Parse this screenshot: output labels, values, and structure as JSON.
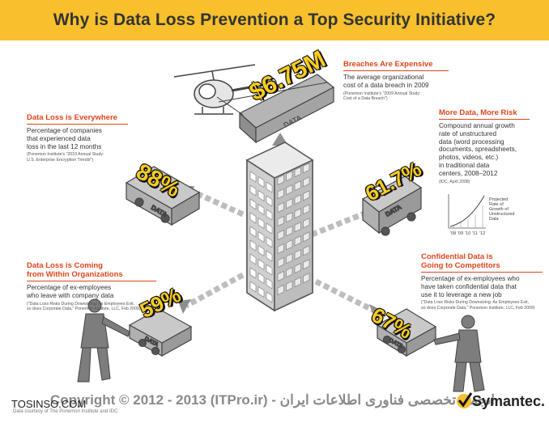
{
  "title": "Why is Data Loss Prevention a Top Security Initiative?",
  "callouts": {
    "breaches": {
      "title": "Breaches Are Expensive",
      "desc": [
        "The average organizational",
        "cost of a data breach in 2009"
      ],
      "source": [
        "(Ponemon Institute's \"2009 Annual Study:",
        "Cost of a Data Breach\")"
      ]
    },
    "everywhere": {
      "title": "Data Loss is Everywhere",
      "desc": [
        "Percentage of companies",
        "that experienced data",
        "loss in the last 12 months"
      ],
      "source": [
        "(Ponemon Institute's \"2010 Annual Study:",
        "U.S. Enterprise Encryption Trends\")"
      ]
    },
    "more_data": {
      "title": "More Data, More Risk",
      "desc": [
        "Compound annual growth",
        "rate of unstructured",
        "data (word processing",
        "documents, spreadsheets,",
        "photos, videos, etc.)",
        "in traditional data",
        "centers, 2008–2012"
      ],
      "source": [
        "(IDC, April 2008)"
      ]
    },
    "within": {
      "title_lines": [
        "Data Loss is Coming",
        "from Within Organizations"
      ],
      "desc": [
        "Percentage of ex-employees",
        "who leave with company data"
      ],
      "source": [
        "(\"Data Loss Risks During Downsizing: As Employees Exit,",
        "so does Corporate Data,\" Ponemon Institute, LLC, Feb 2009)"
      ]
    },
    "competitors": {
      "title_lines": [
        "Confidential Data is",
        "Going to Competitors"
      ],
      "desc": [
        "Percentage of ex-employees who",
        "have taken confidential data that",
        "use it to leverage a new job"
      ],
      "source": [
        "(\"Data Loss Risks During Downsizing: As Employees Exit,",
        "so does Corporate Data,\" Ponemon Institute, LLC, Feb 2009)"
      ]
    }
  },
  "stats": {
    "breach_cost": "$6.75M",
    "everywhere_pct": "88%",
    "more_data_pct": "61.7%",
    "within_pct": "59%",
    "competitors_pct": "67%"
  },
  "data_label": "DATA",
  "mini_chart": {
    "years": [
      "'08",
      "'09",
      "'10",
      "'11",
      "'12"
    ],
    "label": [
      "Projected",
      "Rate of",
      "Growth of",
      "Unstructured",
      "Data"
    ]
  },
  "footer": {
    "copyright": "Copyright © 2012 - 2013 (ITPro.ir) - انجمن تخصصی فناوری اطلاعات ایران",
    "site": "TOSINSO.COM",
    "note": "Data courtesy of The Ponemon Institute and IDC",
    "brand": "Symantec."
  },
  "colors": {
    "banner": "#f7c02c",
    "accent": "#e0451c",
    "stat_yellow": "#fbcd1e",
    "box_gray": "#9a9a9a"
  }
}
